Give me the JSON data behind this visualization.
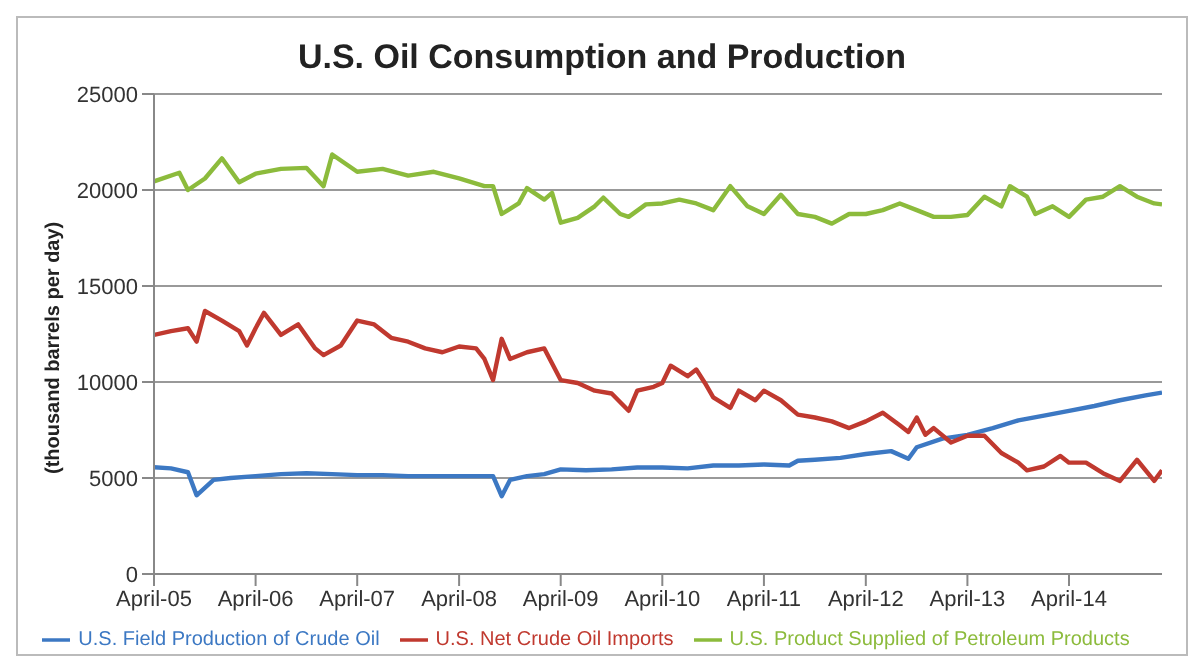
{
  "chart_data": {
    "type": "line",
    "title": "U.S. Oil Consumption and Production",
    "ylabel": "(thousand barrels per day)",
    "xlim": [
      "2005-04",
      "2015-03"
    ],
    "xticks": [
      {
        "value": "2005-04",
        "label": "April-05"
      },
      {
        "value": "2006-04",
        "label": "April-06"
      },
      {
        "value": "2007-04",
        "label": "April-07"
      },
      {
        "value": "2008-04",
        "label": "April-08"
      },
      {
        "value": "2009-04",
        "label": "April-09"
      },
      {
        "value": "2010-04",
        "label": "April-10"
      },
      {
        "value": "2011-04",
        "label": "April-11"
      },
      {
        "value": "2012-04",
        "label": "April-12"
      },
      {
        "value": "2013-04",
        "label": "April-13"
      },
      {
        "value": "2014-04",
        "label": "April-14"
      }
    ],
    "ylim": [
      0,
      25000
    ],
    "yticks": [
      0,
      5000,
      10000,
      15000,
      20000,
      25000
    ],
    "grid": "y",
    "legend": "bottom",
    "marker": "none",
    "line_style": "solid",
    "series": [
      {
        "name": "U.S. Field Production of Crude Oil",
        "color": "#3c78c3",
        "x": [
          "2005-04",
          "2005-06",
          "2005-08",
          "2005-09",
          "2005-11",
          "2006-01",
          "2006-04",
          "2006-07",
          "2006-10",
          "2007-01",
          "2007-04",
          "2007-07",
          "2007-10",
          "2008-01",
          "2008-04",
          "2008-08",
          "2008-09",
          "2008-10",
          "2008-12",
          "2009-02",
          "2009-04",
          "2009-07",
          "2009-10",
          "2010-01",
          "2010-04",
          "2010-07",
          "2010-10",
          "2011-01",
          "2011-04",
          "2011-07",
          "2011-08",
          "2011-10",
          "2012-01",
          "2012-04",
          "2012-07",
          "2012-09",
          "2012-10",
          "2013-01",
          "2013-04",
          "2013-07",
          "2013-10",
          "2014-01",
          "2014-04",
          "2014-07",
          "2014-10",
          "2015-01",
          "2015-03"
        ],
        "values": [
          5560,
          5500,
          5300,
          4100,
          4900,
          5000,
          5100,
          5200,
          5250,
          5200,
          5150,
          5150,
          5100,
          5100,
          5100,
          5100,
          4050,
          4900,
          5100,
          5200,
          5450,
          5400,
          5450,
          5550,
          5550,
          5500,
          5650,
          5650,
          5700,
          5650,
          5900,
          5950,
          6050,
          6250,
          6400,
          6000,
          6600,
          7050,
          7250,
          7600,
          8000,
          8250,
          8500,
          8750,
          9050,
          9300,
          9450
        ]
      },
      {
        "name": "U.S. Net Crude Oil Imports",
        "color": "#c0392f",
        "x": [
          "2005-04",
          "2005-06",
          "2005-08",
          "2005-09",
          "2005-10",
          "2005-12",
          "2006-02",
          "2006-03",
          "2006-04",
          "2006-05",
          "2006-07",
          "2006-09",
          "2006-11",
          "2006-12",
          "2007-02",
          "2007-04",
          "2007-06",
          "2007-08",
          "2007-10",
          "2007-12",
          "2008-02",
          "2008-04",
          "2008-06",
          "2008-07",
          "2008-08",
          "2008-09",
          "2008-10",
          "2008-12",
          "2009-02",
          "2009-04",
          "2009-06",
          "2009-08",
          "2009-10",
          "2009-12",
          "2010-01",
          "2010-03",
          "2010-04",
          "2010-05",
          "2010-07",
          "2010-08",
          "2010-09",
          "2010-10",
          "2010-12",
          "2011-01",
          "2011-03",
          "2011-04",
          "2011-06",
          "2011-08",
          "2011-10",
          "2011-12",
          "2012-02",
          "2012-04",
          "2012-06",
          "2012-08",
          "2012-09",
          "2012-10",
          "2012-11",
          "2012-12",
          "2013-02",
          "2013-04",
          "2013-06",
          "2013-08",
          "2013-10",
          "2013-11",
          "2014-01",
          "2014-03",
          "2014-04",
          "2014-06",
          "2014-08",
          "2014-10",
          "2014-12",
          "2015-02",
          "2015-03"
        ],
        "values": [
          12450,
          12650,
          12800,
          12100,
          13700,
          13200,
          12650,
          11900,
          12800,
          13600,
          12450,
          13000,
          11750,
          11400,
          11900,
          13200,
          13000,
          12300,
          12100,
          11750,
          11550,
          11850,
          11750,
          11200,
          10100,
          12250,
          11200,
          11550,
          11750,
          10100,
          9950,
          9550,
          9400,
          8500,
          9550,
          9750,
          9950,
          10850,
          10300,
          10650,
          9950,
          9200,
          8650,
          9550,
          9050,
          9550,
          9050,
          8300,
          8150,
          7950,
          7600,
          7950,
          8400,
          7750,
          7400,
          8150,
          7250,
          7600,
          6850,
          7200,
          7200,
          6300,
          5800,
          5400,
          5600,
          6150,
          5800,
          5800,
          5250,
          4850,
          5950,
          4850,
          5400
        ]
      },
      {
        "name": "U.S. Product Supplied of Petroleum Products",
        "color": "#8cbb3c",
        "x": [
          "2005-04",
          "2005-07",
          "2005-08",
          "2005-10",
          "2005-12",
          "2006-02",
          "2006-04",
          "2006-07",
          "2006-10",
          "2006-12",
          "2007-01",
          "2007-04",
          "2007-07",
          "2007-10",
          "2008-01",
          "2008-04",
          "2008-07",
          "2008-08",
          "2008-09",
          "2008-11",
          "2008-12",
          "2009-02",
          "2009-03",
          "2009-04",
          "2009-06",
          "2009-08",
          "2009-09",
          "2009-11",
          "2009-12",
          "2010-02",
          "2010-04",
          "2010-06",
          "2010-08",
          "2010-10",
          "2010-12",
          "2011-02",
          "2011-04",
          "2011-06",
          "2011-08",
          "2011-10",
          "2011-12",
          "2012-02",
          "2012-04",
          "2012-06",
          "2012-08",
          "2012-10",
          "2012-12",
          "2013-02",
          "2013-04",
          "2013-06",
          "2013-08",
          "2013-09",
          "2013-11",
          "2013-12",
          "2014-02",
          "2014-04",
          "2014-06",
          "2014-08",
          "2014-10",
          "2014-12",
          "2015-02",
          "2015-03"
        ],
        "values": [
          20450,
          20900,
          20000,
          20600,
          21650,
          20400,
          20850,
          21100,
          21150,
          20200,
          21850,
          20950,
          21100,
          20750,
          20950,
          20600,
          20200,
          20200,
          18750,
          19300,
          20100,
          19500,
          19850,
          18300,
          18550,
          19150,
          19600,
          18750,
          18600,
          19250,
          19300,
          19500,
          19300,
          18950,
          20200,
          19150,
          18750,
          19750,
          18750,
          18600,
          18250,
          18750,
          18750,
          18950,
          19300,
          18950,
          18600,
          18600,
          18700,
          19650,
          19150,
          20200,
          19650,
          18750,
          19150,
          18600,
          19500,
          19650,
          20200,
          19650,
          19300,
          19250
        ]
      }
    ]
  }
}
